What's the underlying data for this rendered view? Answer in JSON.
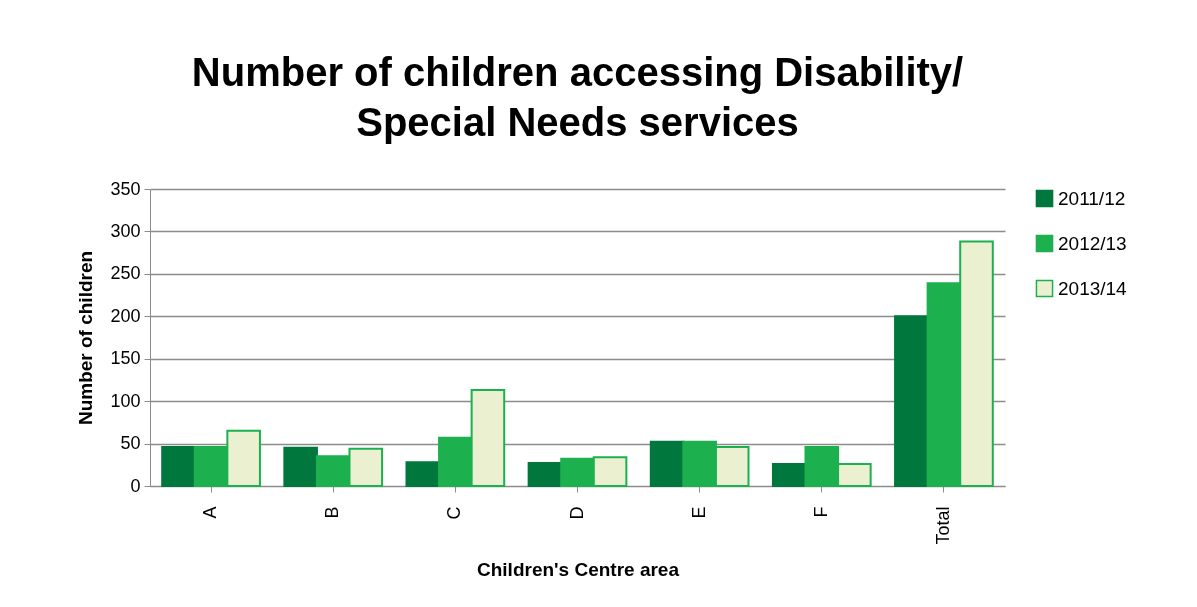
{
  "chart_data": {
    "type": "bar",
    "title": "Number of children accessing Disability/ Special Needs services",
    "xlabel": "Children's Centre area",
    "ylabel": "Number of children",
    "categories": [
      "A",
      "B",
      "C",
      "D",
      "E",
      "F",
      "Total"
    ],
    "series": [
      {
        "name": "2011/12",
        "color": "#00773c",
        "values": [
          46,
          45,
          28,
          27,
          52,
          26,
          200
        ]
      },
      {
        "name": "2012/13",
        "color": "#1db04f",
        "values": [
          46,
          35,
          57,
          32,
          52,
          46,
          239
        ]
      },
      {
        "name": "2013/14",
        "color": "#ebf1d0",
        "values": [
          65,
          44,
          113,
          34,
          46,
          26,
          288
        ]
      }
    ],
    "ylim": [
      0,
      350
    ],
    "yticks": [
      0,
      50,
      100,
      150,
      200,
      250,
      300,
      350
    ],
    "grid": "y",
    "legend": "right"
  }
}
